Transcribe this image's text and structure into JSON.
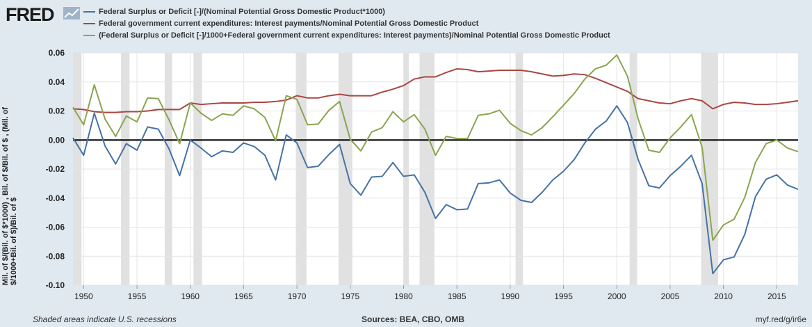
{
  "header": {
    "logo_text": "FRED",
    "logo_icon": "chart-line-icon"
  },
  "legend": [
    {
      "label": "Federal Surplus or Deficit [-]/(Nominal Potential Gross Domestic Product*1000)",
      "color": "#4572a7"
    },
    {
      "label": "Federal government current expenditures: Interest payments/Nominal Potential Gross Domestic Product",
      "color": "#aa4643"
    },
    {
      "label": "(Federal Surplus or Deficit [-]/1000+Federal government current expenditures: Interest payments)/Nominal Potential Gross Domestic Product",
      "color": "#89a54e"
    }
  ],
  "footer": {
    "recession_note": "Shaded areas indicate U.S. recessions",
    "sources": "Sources: BEA, CBO, OMB",
    "short_url": "myf.red/g/ir6e"
  },
  "chart_data": {
    "type": "line",
    "ylabel": "Mil. of $/(Bil. of $*1000) , Bil. of $/Bil. of $ , (Mil. of $/1000+Bil. of $)/Bil. of $",
    "xlabel": "",
    "ylim": [
      -0.1,
      0.06
    ],
    "yticks": [
      "0.06",
      "0.04",
      "0.02",
      "0.00",
      "-0.02",
      "-0.04",
      "-0.06",
      "-0.08",
      "-0.10"
    ],
    "ytick_values": [
      0.06,
      0.04,
      0.02,
      0.0,
      -0.02,
      -0.04,
      -0.06,
      -0.08,
      -0.1
    ],
    "xlim": [
      1949,
      2017
    ],
    "xticks": [
      "1950",
      "1955",
      "1960",
      "1965",
      "1970",
      "1975",
      "1980",
      "1985",
      "1990",
      "1995",
      "2000",
      "2005",
      "2010",
      "2015"
    ],
    "xtick_values": [
      1950,
      1955,
      1960,
      1965,
      1970,
      1975,
      1980,
      1985,
      1990,
      1995,
      2000,
      2005,
      2010,
      2015
    ],
    "recessions": [
      [
        1948.9,
        1949.8
      ],
      [
        1953.5,
        1954.3
      ],
      [
        1957.6,
        1958.3
      ],
      [
        1960.3,
        1961.1
      ],
      [
        1969.9,
        1970.9
      ],
      [
        1973.9,
        1975.2
      ],
      [
        1980.0,
        1980.5
      ],
      [
        1981.5,
        1982.9
      ],
      [
        1990.5,
        1991.2
      ],
      [
        2001.2,
        2001.9
      ],
      [
        2007.9,
        2009.5
      ]
    ],
    "zero_line": 0,
    "series": [
      {
        "name": "Federal Surplus or Deficit [-]/(Nominal Potential Gross Domestic Product*1000)",
        "color": "#4572a7",
        "x": [
          1949,
          1950,
          1951,
          1952,
          1953,
          1954,
          1955,
          1956,
          1957,
          1958,
          1959,
          1960,
          1961,
          1962,
          1963,
          1964,
          1965,
          1966,
          1967,
          1968,
          1969,
          1970,
          1971,
          1972,
          1973,
          1974,
          1975,
          1976,
          1977,
          1978,
          1979,
          1980,
          1981,
          1982,
          1983,
          1984,
          1985,
          1986,
          1987,
          1988,
          1989,
          1990,
          1991,
          1992,
          1993,
          1994,
          1995,
          1996,
          1997,
          1998,
          1999,
          2000,
          2001,
          2002,
          2003,
          2004,
          2005,
          2006,
          2007,
          2008,
          2009,
          2010,
          2011,
          2012,
          2013,
          2014,
          2015,
          2016,
          2017
        ],
        "values": [
          0.0015,
          -0.0105,
          0.0185,
          -0.004,
          -0.0165,
          -0.0025,
          -0.007,
          0.009,
          0.0075,
          -0.006,
          -0.0245,
          0.0,
          -0.0055,
          -0.0115,
          -0.0075,
          -0.0085,
          -0.002,
          -0.0045,
          -0.0105,
          -0.0275,
          0.0035,
          -0.002,
          -0.019,
          -0.018,
          -0.01,
          -0.003,
          -0.03,
          -0.038,
          -0.0255,
          -0.025,
          -0.0155,
          -0.025,
          -0.024,
          -0.036,
          -0.054,
          -0.0445,
          -0.048,
          -0.0475,
          -0.03,
          -0.0295,
          -0.0275,
          -0.0365,
          -0.0415,
          -0.043,
          -0.036,
          -0.0275,
          -0.0215,
          -0.0135,
          -0.002,
          0.0075,
          0.013,
          0.0235,
          0.012,
          -0.0135,
          -0.0315,
          -0.033,
          -0.0245,
          -0.018,
          -0.0105,
          -0.03,
          -0.092,
          -0.0825,
          -0.0805,
          -0.065,
          -0.039,
          -0.027,
          -0.024,
          -0.031,
          -0.034
        ]
      },
      {
        "name": "Federal government current expenditures: Interest payments/Nominal Potential Gross Domestic Product",
        "color": "#aa4643",
        "x": [
          1949,
          1950,
          1951,
          1952,
          1953,
          1954,
          1955,
          1956,
          1957,
          1958,
          1959,
          1960,
          1961,
          1962,
          1963,
          1964,
          1965,
          1966,
          1967,
          1968,
          1969,
          1970,
          1971,
          1972,
          1973,
          1974,
          1975,
          1976,
          1977,
          1978,
          1979,
          1980,
          1981,
          1982,
          1983,
          1984,
          1985,
          1986,
          1987,
          1988,
          1989,
          1990,
          1991,
          1992,
          1993,
          1994,
          1995,
          1996,
          1997,
          1998,
          1999,
          2000,
          2001,
          2002,
          2003,
          2004,
          2005,
          2006,
          2007,
          2008,
          2009,
          2010,
          2011,
          2012,
          2013,
          2014,
          2015,
          2016,
          2017
        ],
        "values": [
          0.0215,
          0.021,
          0.0195,
          0.019,
          0.019,
          0.0195,
          0.0195,
          0.02,
          0.021,
          0.021,
          0.021,
          0.0255,
          0.0245,
          0.025,
          0.0255,
          0.0255,
          0.0255,
          0.026,
          0.026,
          0.0265,
          0.0275,
          0.0305,
          0.029,
          0.029,
          0.0305,
          0.0315,
          0.0305,
          0.0305,
          0.0305,
          0.033,
          0.035,
          0.0375,
          0.042,
          0.0435,
          0.0435,
          0.0465,
          0.049,
          0.0485,
          0.047,
          0.0475,
          0.048,
          0.048,
          0.048,
          0.047,
          0.0455,
          0.044,
          0.0445,
          0.0455,
          0.045,
          0.0425,
          0.0395,
          0.0365,
          0.0335,
          0.0285,
          0.027,
          0.0255,
          0.025,
          0.027,
          0.0285,
          0.027,
          0.0215,
          0.0245,
          0.026,
          0.0255,
          0.0245,
          0.0245,
          0.025,
          0.026,
          0.027
        ]
      },
      {
        "name": "(Federal Surplus or Deficit [-]/1000+Federal government current expenditures: Interest payments)/Nominal Potential Gross Domestic Product",
        "color": "#89a54e",
        "x": [
          1949,
          1950,
          1951,
          1952,
          1953,
          1954,
          1955,
          1956,
          1957,
          1958,
          1959,
          1960,
          1961,
          1962,
          1963,
          1964,
          1965,
          1966,
          1967,
          1968,
          1969,
          1970,
          1971,
          1972,
          1973,
          1974,
          1975,
          1976,
          1977,
          1978,
          1979,
          1980,
          1981,
          1982,
          1983,
          1984,
          1985,
          1986,
          1987,
          1988,
          1989,
          1990,
          1991,
          1992,
          1993,
          1994,
          1995,
          1996,
          1997,
          1998,
          1999,
          2000,
          2001,
          2002,
          2003,
          2004,
          2005,
          2006,
          2007,
          2008,
          2009,
          2010,
          2011,
          2012,
          2013,
          2014,
          2015,
          2016,
          2017
        ],
        "values": [
          0.0225,
          0.0105,
          0.038,
          0.0145,
          0.0025,
          0.0165,
          0.0125,
          0.029,
          0.0285,
          0.014,
          -0.0025,
          0.0255,
          0.0185,
          0.0135,
          0.018,
          0.017,
          0.0235,
          0.0215,
          0.0155,
          -0.0005,
          0.0305,
          0.028,
          0.0105,
          0.011,
          0.0205,
          0.0265,
          0.0005,
          -0.0075,
          0.0055,
          0.0085,
          0.0195,
          0.0125,
          0.0175,
          0.0075,
          -0.0105,
          0.0025,
          0.001,
          0.001,
          0.017,
          0.018,
          0.0205,
          0.0115,
          0.0065,
          0.0035,
          0.0085,
          0.016,
          0.024,
          0.032,
          0.042,
          0.049,
          0.0515,
          0.0585,
          0.044,
          0.0145,
          -0.007,
          -0.0085,
          0.0015,
          0.009,
          0.0175,
          -0.005,
          -0.069,
          -0.0585,
          -0.0545,
          -0.0395,
          -0.0155,
          -0.0025,
          0.0,
          -0.0055,
          -0.008
        ]
      }
    ]
  }
}
